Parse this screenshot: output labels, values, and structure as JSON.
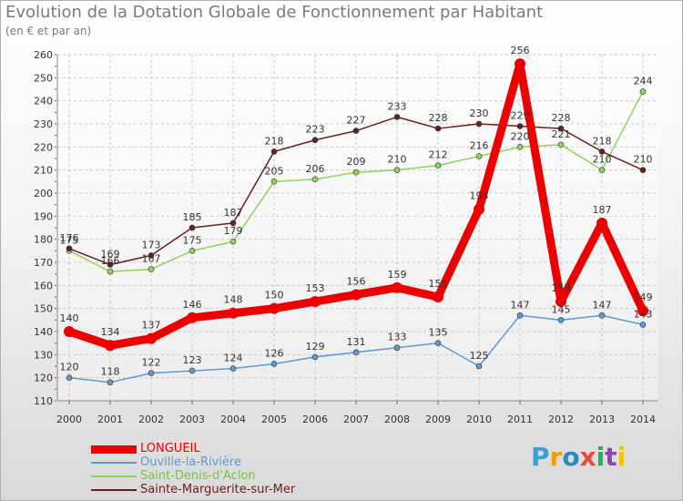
{
  "header": {
    "title": "Evolution de la Dotation Globale de Fonctionnement par Habitant",
    "subtitle": "(en € et par an)"
  },
  "logo": {
    "letters": [
      "P",
      "r",
      "o",
      "x",
      "i",
      "t",
      "i"
    ],
    "colors": [
      "#3aa0d8",
      "#f39c12",
      "#2e86c1",
      "#e74c3c",
      "#27ae60",
      "#8e44ad",
      "#f1c40f"
    ]
  },
  "chart_data": {
    "type": "line",
    "title": "Evolution de la Dotation Globale de Fonctionnement par Habitant",
    "subtitle": "(en € et par an)",
    "x": [
      "2000",
      "2001",
      "2002",
      "2003",
      "2004",
      "2005",
      "2006",
      "2007",
      "2008",
      "2009",
      "2010",
      "2011",
      "2012",
      "2013",
      "2014"
    ],
    "ylim": [
      110,
      260
    ],
    "yticks": [
      110,
      120,
      130,
      140,
      150,
      160,
      170,
      180,
      190,
      200,
      210,
      220,
      230,
      240,
      250,
      260
    ],
    "grid": true,
    "legend_position": "bottom-left",
    "series": [
      {
        "name": "LONGUEIL",
        "color": "#ee0000",
        "width": 9,
        "values": [
          140,
          134,
          137,
          146,
          148,
          150,
          153,
          156,
          159,
          155,
          193,
          256,
          153,
          187,
          149
        ],
        "labels": [
          "140",
          "134",
          "137",
          "146",
          "148",
          "150",
          "153",
          "156",
          "159",
          "155",
          "193",
          "256",
          "153",
          "187",
          "149"
        ]
      },
      {
        "name": "Ouville-la-Rivière",
        "color": "#5b9bd5",
        "width": 1.5,
        "values": [
          120,
          118,
          122,
          123,
          124,
          126,
          129,
          131,
          133,
          135,
          125,
          147,
          145,
          147,
          143
        ],
        "labels": [
          "120",
          "118",
          "122",
          "123",
          "124",
          "126",
          "129",
          "131",
          "133",
          "135",
          "125",
          "147",
          "145",
          "147",
          "143"
        ]
      },
      {
        "name": "Saint-Denis-d'Aclon",
        "color": "#8fd45a",
        "width": 1.5,
        "values": [
          175,
          166,
          167,
          175,
          179,
          205,
          206,
          209,
          210,
          212,
          216,
          220,
          221,
          210,
          244
        ],
        "labels": [
          "175",
          "166",
          "167",
          "175",
          "179",
          "205",
          "206",
          "209",
          "210",
          "212",
          "216",
          "220",
          "221",
          "210",
          "244"
        ]
      },
      {
        "name": "Sainte-Marguerite-sur-Mer",
        "color": "#6b1e1e",
        "width": 1.5,
        "values": [
          176,
          169,
          173,
          185,
          187,
          218,
          223,
          227,
          233,
          228,
          230,
          229,
          228,
          218,
          210
        ],
        "labels": [
          "176",
          "169",
          "173",
          "185",
          "187",
          "218",
          "223",
          "227",
          "233",
          "228",
          "230",
          "229",
          "228",
          "218",
          "210"
        ]
      }
    ]
  }
}
